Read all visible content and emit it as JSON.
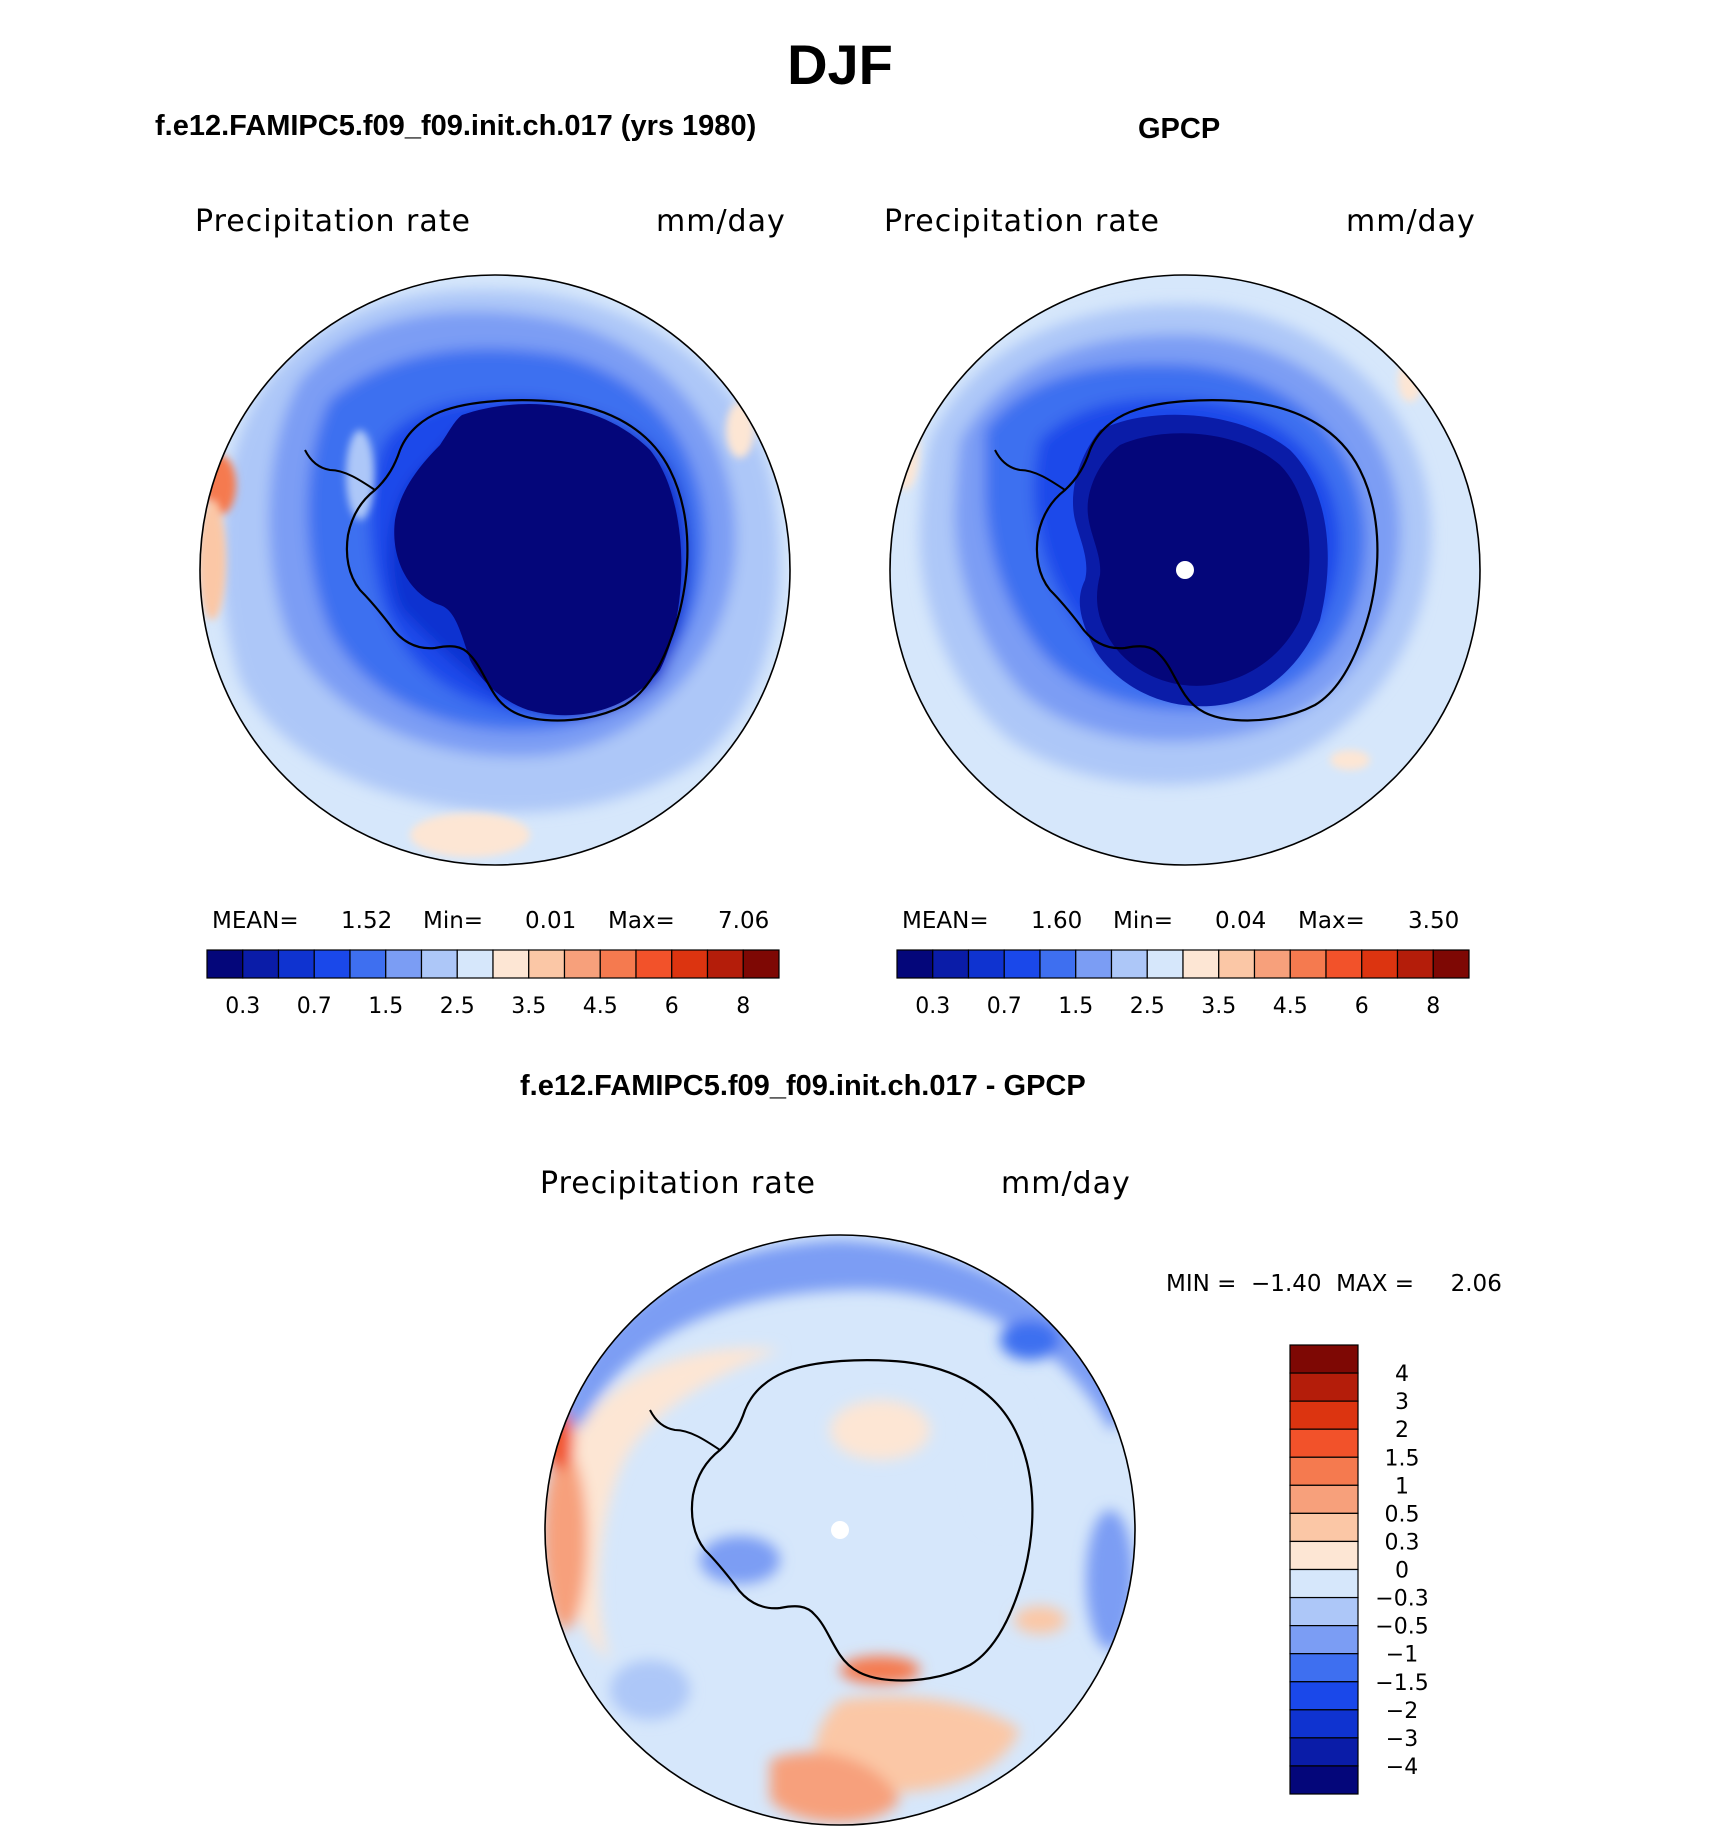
{
  "figure": {
    "title": "DJF",
    "panel_model_title": "f.e12.FAMIPC5.f09_f09.init.ch.017 (yrs 1980)",
    "panel_obs_title": "GPCP",
    "panel_diff_title": "f.e12.FAMIPC5.f09_f09.init.ch.017 - GPCP"
  },
  "chart_data": [
    {
      "type": "heatmap",
      "projection": "south-polar-stereographic",
      "title": "f.e12.FAMIPC5.f09_f09.init.ch.017 (yrs 1980)",
      "field_label": "Precipitation rate",
      "units": "mm/day",
      "stats": {
        "mean_label": "MEAN=",
        "mean": "1.52",
        "min_label": "Min=",
        "min": "0.01",
        "max_label": "Max=",
        "max": "7.06"
      },
      "contour_levels": [
        "0.2",
        "0.3",
        "0.5",
        "0.7",
        "1",
        "1.5",
        "2",
        "2.5",
        "3",
        "3.5",
        "4",
        "4.5",
        "5",
        "6",
        "7",
        "8"
      ],
      "colorbar_tick_labels": [
        "0.3",
        "0.7",
        "1.5",
        "2.5",
        "3.5",
        "4.5",
        "6",
        "8"
      ],
      "colors": [
        "#04067a",
        "#0a1ca8",
        "#0f33d0",
        "#1a48ea",
        "#3e6ff0",
        "#7b9df4",
        "#adc7f8",
        "#d6e7fb",
        "#fde6d4",
        "#fbc7a6",
        "#f7a07b",
        "#f57a4f",
        "#f2522a",
        "#dc3410",
        "#b41d0a",
        "#7e0804"
      ]
    },
    {
      "type": "heatmap",
      "projection": "south-polar-stereographic",
      "title": "GPCP",
      "field_label": "Precipitation rate",
      "units": "mm/day",
      "stats": {
        "mean_label": "MEAN=",
        "mean": "1.60",
        "min_label": "Min=",
        "min": "0.04",
        "max_label": "Max=",
        "max": "3.50"
      },
      "contour_levels": [
        "0.2",
        "0.3",
        "0.5",
        "0.7",
        "1",
        "1.5",
        "2",
        "2.5",
        "3",
        "3.5",
        "4",
        "4.5",
        "5",
        "6",
        "7",
        "8"
      ],
      "colorbar_tick_labels": [
        "0.3",
        "0.7",
        "1.5",
        "2.5",
        "3.5",
        "4.5",
        "6",
        "8"
      ],
      "colors": [
        "#04067a",
        "#0a1ca8",
        "#0f33d0",
        "#1a48ea",
        "#3e6ff0",
        "#7b9df4",
        "#adc7f8",
        "#d6e7fb",
        "#fde6d4",
        "#fbc7a6",
        "#f7a07b",
        "#f57a4f",
        "#f2522a",
        "#dc3410",
        "#b41d0a",
        "#7e0804"
      ]
    },
    {
      "type": "heatmap",
      "projection": "south-polar-stereographic",
      "title": "f.e12.FAMIPC5.f09_f09.init.ch.017 - GPCP",
      "field_label": "Precipitation rate",
      "units": "mm/day",
      "stats_text": "MIN =  −1.40  MAX =     2.06",
      "colorbar_labels_top_to_bottom": [
        "4",
        "3",
        "2",
        "1.5",
        "1",
        "0.5",
        "0.3",
        "0",
        "−0.3",
        "−0.5",
        "−1",
        "−1.5",
        "−2",
        "−3",
        "−4"
      ],
      "colors_top_to_bottom": [
        "#7e0804",
        "#b41d0a",
        "#dc3410",
        "#f2522a",
        "#f57a4f",
        "#f7a07b",
        "#fbc7a6",
        "#fde6d4",
        "#d6e7fb",
        "#adc7f8",
        "#7b9df4",
        "#3e6ff0",
        "#1a48ea",
        "#0f33d0",
        "#0a1ca8",
        "#04067a"
      ]
    }
  ]
}
